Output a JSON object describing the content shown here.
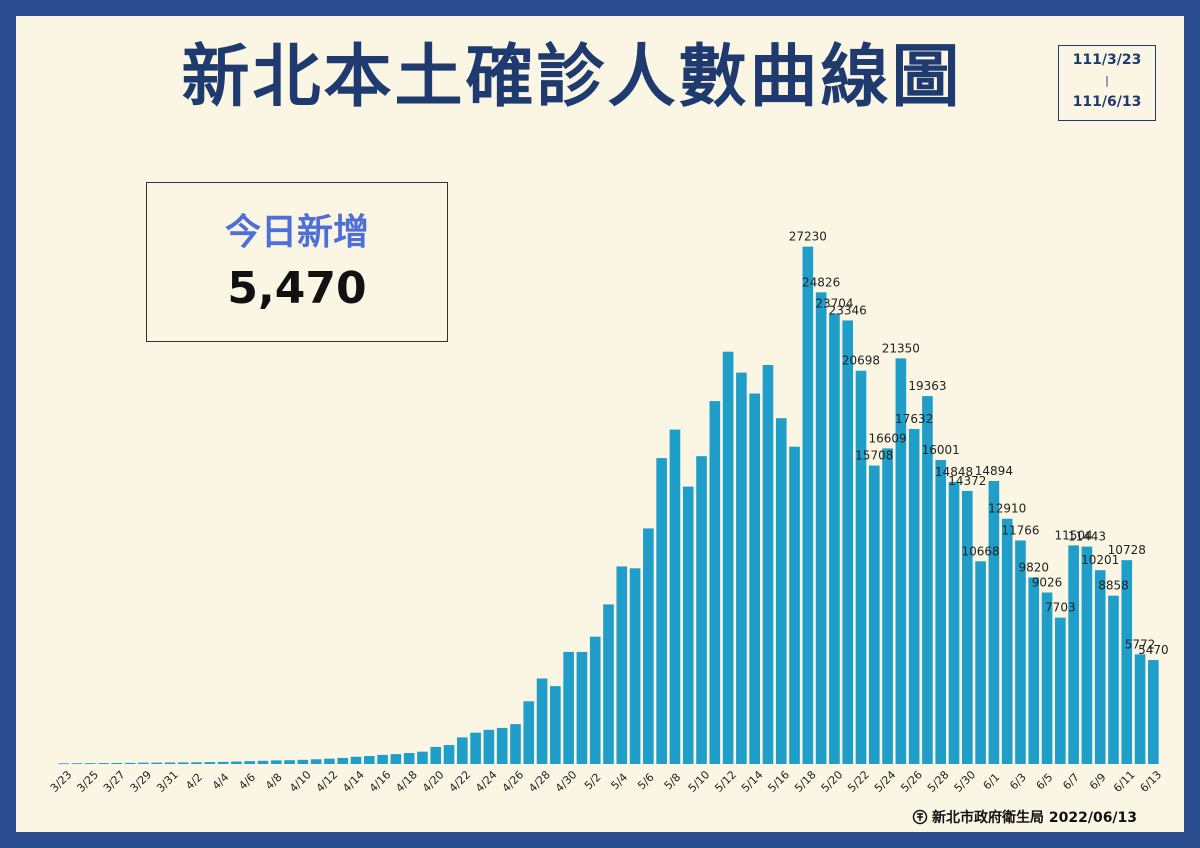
{
  "title": "新北本土確診人數曲線圖",
  "date_range": {
    "start": "111/3/23",
    "separator": "|",
    "end": "111/6/13"
  },
  "today": {
    "label": "今日新增",
    "value": "5,470"
  },
  "footer": {
    "source": "新北市政府衛生局 2022/06/13"
  },
  "colors": {
    "bar": "#1e9ec8",
    "title": "#1e3a6e",
    "border": "#2b4c8f",
    "background": "#fbf6e3",
    "highlight": "#4f6fd8"
  },
  "chart_data": {
    "type": "bar",
    "title": "新北本土確診人數曲線圖",
    "xlabel": "",
    "ylabel": "",
    "ylim": [
      0,
      28000
    ],
    "grid": false,
    "categories": [
      "3/23",
      "3/24",
      "3/25",
      "3/26",
      "3/27",
      "3/28",
      "3/29",
      "3/30",
      "3/31",
      "4/1",
      "4/2",
      "4/3",
      "4/4",
      "4/5",
      "4/6",
      "4/7",
      "4/8",
      "4/9",
      "4/10",
      "4/11",
      "4/12",
      "4/13",
      "4/14",
      "4/15",
      "4/16",
      "4/17",
      "4/18",
      "4/19",
      "4/20",
      "4/21",
      "4/22",
      "4/23",
      "4/24",
      "4/25",
      "4/26",
      "4/27",
      "4/28",
      "4/29",
      "4/30",
      "5/1",
      "5/2",
      "5/3",
      "5/4",
      "5/5",
      "5/6",
      "5/7",
      "5/8",
      "5/9",
      "5/10",
      "5/11",
      "5/12",
      "5/13",
      "5/14",
      "5/15",
      "5/16",
      "5/17",
      "5/18",
      "5/19",
      "5/20",
      "5/21",
      "5/22",
      "5/23",
      "5/24",
      "5/25",
      "5/26",
      "5/27",
      "5/28",
      "5/29",
      "5/30",
      "5/31",
      "6/1",
      "6/2",
      "6/3",
      "6/4",
      "6/5",
      "6/6",
      "6/7",
      "6/8",
      "6/9",
      "6/10",
      "6/11",
      "6/12",
      "6/13"
    ],
    "tick_labels": [
      "3/23",
      "3/25",
      "3/27",
      "3/29",
      "3/31",
      "4/2",
      "4/4",
      "4/6",
      "4/8",
      "4/10",
      "4/12",
      "4/14",
      "4/16",
      "4/18",
      "4/20",
      "4/22",
      "4/24",
      "4/26",
      "4/28",
      "4/30",
      "5/2",
      "5/4",
      "5/6",
      "5/8",
      "5/10",
      "5/12",
      "5/14",
      "5/16",
      "5/18",
      "5/20",
      "5/22",
      "5/24",
      "5/26",
      "5/28",
      "5/30",
      "6/1",
      "6/3",
      "6/5",
      "6/7",
      "6/9",
      "6/11",
      "6/13"
    ],
    "values": [
      35,
      40,
      45,
      50,
      55,
      60,
      70,
      75,
      80,
      85,
      90,
      100,
      110,
      130,
      150,
      170,
      190,
      200,
      220,
      250,
      280,
      320,
      380,
      420,
      480,
      520,
      580,
      650,
      900,
      1000,
      1400,
      1650,
      1800,
      1900,
      2100,
      3300,
      4500,
      4100,
      5900,
      5900,
      6700,
      8400,
      10400,
      10300,
      12400,
      16100,
      17600,
      14600,
      16200,
      19100,
      21700,
      20600,
      19500,
      21000,
      18200,
      16700,
      27230,
      24826,
      23704,
      23346,
      20698,
      15708,
      16609,
      21350,
      17632,
      19363,
      16001,
      14848,
      14372,
      10668,
      14894,
      12910,
      11766,
      9820,
      9026,
      7703,
      11504,
      11443,
      10201,
      8858,
      10728,
      5772,
      5470
    ],
    "data_labels": [
      {
        "x": "5/18",
        "label": "27230"
      },
      {
        "x": "5/19",
        "label": "24826"
      },
      {
        "x": "5/20",
        "label": "23704"
      },
      {
        "x": "5/21",
        "label": "23346"
      },
      {
        "x": "5/22",
        "label": "20698"
      },
      {
        "x": "5/23",
        "label": "15708"
      },
      {
        "x": "5/24",
        "label": "16609"
      },
      {
        "x": "5/25",
        "label": "21350"
      },
      {
        "x": "5/26",
        "label": "17632"
      },
      {
        "x": "5/27",
        "label": "19363"
      },
      {
        "x": "5/28",
        "label": "16001"
      },
      {
        "x": "5/29",
        "label": "14848"
      },
      {
        "x": "5/30",
        "label": "14372"
      },
      {
        "x": "5/31",
        "label": "10668"
      },
      {
        "x": "6/1",
        "label": "14894"
      },
      {
        "x": "6/2",
        "label": "12910"
      },
      {
        "x": "6/3",
        "label": "11766"
      },
      {
        "x": "6/4",
        "label": "9820"
      },
      {
        "x": "6/5",
        "label": "9026"
      },
      {
        "x": "6/6",
        "label": "7703"
      },
      {
        "x": "6/7",
        "label": "11504"
      },
      {
        "x": "6/8",
        "label": "11443"
      },
      {
        "x": "6/9",
        "label": "10201"
      },
      {
        "x": "6/10",
        "label": "8858"
      },
      {
        "x": "6/11",
        "label": "10728"
      },
      {
        "x": "6/12",
        "label": "5772"
      },
      {
        "x": "6/13",
        "label": "5470"
      }
    ]
  }
}
